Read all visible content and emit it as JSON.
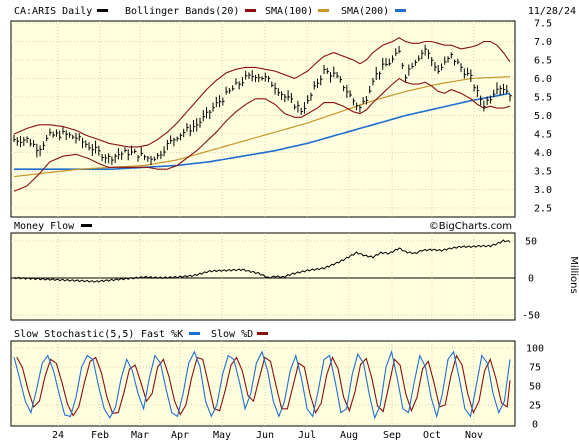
{
  "chart_data": [
    {
      "id": "price",
      "type": "line",
      "title": "CA:ARIS Daily",
      "date": "11/28/24",
      "watermark": "©BigCharts.com",
      "legend": [
        {
          "name": "Bollinger Bands(20)",
          "color": "#8b1010"
        },
        {
          "name": "SMA(100)",
          "color": "#c89628"
        },
        {
          "name": "SMA(200)",
          "color": "#1f6fcf"
        }
      ],
      "ylim": [
        2.5,
        7.5
      ],
      "y_ticks": [
        "2.5",
        "3.0",
        "3.5",
        "4.0",
        "4.5",
        "5.0",
        "5.5",
        "6.0",
        "6.5",
        "7.0",
        "7.5"
      ],
      "x_ticks": [
        "24",
        "Feb",
        "Mar",
        "Apr",
        "May",
        "Jun",
        "Jul",
        "Aug",
        "Sep",
        "Oct",
        "Nov"
      ],
      "price_waypoints": [
        [
          0,
          4.35
        ],
        [
          8,
          4.35
        ],
        [
          15,
          4.1
        ],
        [
          22,
          4.45
        ],
        [
          30,
          4.5
        ],
        [
          38,
          4.4
        ],
        [
          45,
          4.2
        ],
        [
          52,
          4.0
        ],
        [
          58,
          3.85
        ],
        [
          64,
          3.95
        ],
        [
          70,
          4.0
        ],
        [
          76,
          3.95
        ],
        [
          82,
          3.85
        ],
        [
          88,
          3.9
        ],
        [
          94,
          4.2
        ],
        [
          100,
          4.45
        ],
        [
          106,
          4.6
        ],
        [
          112,
          4.75
        ],
        [
          118,
          5.0
        ],
        [
          124,
          5.3
        ],
        [
          130,
          5.55
        ],
        [
          136,
          5.8
        ],
        [
          142,
          6.0
        ],
        [
          148,
          6.1
        ],
        [
          154,
          6.0
        ],
        [
          160,
          5.8
        ],
        [
          166,
          5.5
        ],
        [
          172,
          5.3
        ],
        [
          176,
          5.15
        ],
        [
          180,
          5.35
        ],
        [
          186,
          5.9
        ],
        [
          190,
          6.2
        ],
        [
          196,
          6.1
        ],
        [
          202,
          5.8
        ],
        [
          208,
          5.4
        ],
        [
          212,
          5.2
        ],
        [
          216,
          5.5
        ],
        [
          220,
          6.0
        ],
        [
          226,
          6.3
        ],
        [
          232,
          6.5
        ],
        [
          236,
          6.7
        ],
        [
          240,
          6.1
        ],
        [
          244,
          6.4
        ],
        [
          248,
          6.6
        ],
        [
          252,
          6.8
        ],
        [
          256,
          6.5
        ],
        [
          260,
          6.2
        ],
        [
          264,
          6.4
        ],
        [
          268,
          6.6
        ],
        [
          274,
          6.3
        ],
        [
          280,
          6.0
        ],
        [
          284,
          5.6
        ],
        [
          288,
          5.3
        ],
        [
          292,
          5.5
        ],
        [
          296,
          5.8
        ],
        [
          300,
          5.75
        ],
        [
          304,
          5.6
        ]
      ],
      "bb_upper_waypoints": [
        [
          0,
          4.5
        ],
        [
          8,
          4.65
        ],
        [
          15,
          4.75
        ],
        [
          22,
          4.75
        ],
        [
          30,
          4.7
        ],
        [
          38,
          4.6
        ],
        [
          45,
          4.45
        ],
        [
          52,
          4.35
        ],
        [
          58,
          4.25
        ],
        [
          64,
          4.2
        ],
        [
          70,
          4.15
        ],
        [
          76,
          4.15
        ],
        [
          82,
          4.2
        ],
        [
          88,
          4.35
        ],
        [
          94,
          4.55
        ],
        [
          100,
          4.8
        ],
        [
          106,
          5.1
        ],
        [
          112,
          5.4
        ],
        [
          118,
          5.7
        ],
        [
          124,
          5.95
        ],
        [
          130,
          6.15
        ],
        [
          136,
          6.25
        ],
        [
          142,
          6.3
        ],
        [
          148,
          6.3
        ],
        [
          154,
          6.25
        ],
        [
          160,
          6.2
        ],
        [
          166,
          6.1
        ],
        [
          172,
          6.0
        ],
        [
          176,
          6.1
        ],
        [
          180,
          6.2
        ],
        [
          186,
          6.45
        ],
        [
          190,
          6.6
        ],
        [
          196,
          6.7
        ],
        [
          202,
          6.6
        ],
        [
          208,
          6.5
        ],
        [
          212,
          6.4
        ],
        [
          216,
          6.5
        ],
        [
          220,
          6.7
        ],
        [
          226,
          6.9
        ],
        [
          232,
          7.0
        ],
        [
          236,
          7.1
        ],
        [
          240,
          7.0
        ],
        [
          244,
          6.95
        ],
        [
          248,
          6.95
        ],
        [
          252,
          7.0
        ],
        [
          256,
          7.0
        ],
        [
          260,
          6.95
        ],
        [
          264,
          6.9
        ],
        [
          268,
          6.9
        ],
        [
          274,
          6.8
        ],
        [
          280,
          6.85
        ],
        [
          284,
          6.9
        ],
        [
          288,
          7.0
        ],
        [
          292,
          7.0
        ],
        [
          296,
          6.9
        ],
        [
          300,
          6.7
        ],
        [
          304,
          6.45
        ]
      ],
      "bb_lower_waypoints": [
        [
          0,
          2.95
        ],
        [
          8,
          3.1
        ],
        [
          15,
          3.4
        ],
        [
          22,
          3.75
        ],
        [
          30,
          3.9
        ],
        [
          38,
          3.95
        ],
        [
          45,
          3.85
        ],
        [
          52,
          3.7
        ],
        [
          58,
          3.6
        ],
        [
          64,
          3.6
        ],
        [
          70,
          3.6
        ],
        [
          76,
          3.6
        ],
        [
          82,
          3.6
        ],
        [
          88,
          3.55
        ],
        [
          94,
          3.55
        ],
        [
          100,
          3.65
        ],
        [
          106,
          3.85
        ],
        [
          112,
          4.05
        ],
        [
          118,
          4.3
        ],
        [
          124,
          4.55
        ],
        [
          130,
          4.85
        ],
        [
          136,
          5.1
        ],
        [
          142,
          5.3
        ],
        [
          148,
          5.45
        ],
        [
          154,
          5.45
        ],
        [
          160,
          5.3
        ],
        [
          166,
          5.05
        ],
        [
          172,
          4.95
        ],
        [
          176,
          4.95
        ],
        [
          180,
          5.05
        ],
        [
          186,
          5.2
        ],
        [
          190,
          5.35
        ],
        [
          196,
          5.35
        ],
        [
          202,
          5.25
        ],
        [
          208,
          5.1
        ],
        [
          212,
          5.05
        ],
        [
          216,
          5.15
        ],
        [
          220,
          5.35
        ],
        [
          226,
          5.6
        ],
        [
          232,
          5.85
        ],
        [
          236,
          6.0
        ],
        [
          240,
          5.9
        ],
        [
          244,
          5.85
        ],
        [
          248,
          5.85
        ],
        [
          252,
          5.9
        ],
        [
          256,
          5.8
        ],
        [
          260,
          5.65
        ],
        [
          264,
          5.6
        ],
        [
          268,
          5.7
        ],
        [
          274,
          5.6
        ],
        [
          280,
          5.45
        ],
        [
          284,
          5.3
        ],
        [
          288,
          5.2
        ],
        [
          292,
          5.25
        ],
        [
          296,
          5.2
        ],
        [
          300,
          5.2
        ],
        [
          304,
          5.25
        ]
      ],
      "sma100_waypoints": [
        [
          0,
          3.35
        ],
        [
          20,
          3.45
        ],
        [
          40,
          3.55
        ],
        [
          60,
          3.6
        ],
        [
          80,
          3.65
        ],
        [
          100,
          3.8
        ],
        [
          120,
          4.05
        ],
        [
          140,
          4.3
        ],
        [
          160,
          4.55
        ],
        [
          180,
          4.8
        ],
        [
          200,
          5.1
        ],
        [
          220,
          5.4
        ],
        [
          240,
          5.65
        ],
        [
          260,
          5.85
        ],
        [
          280,
          6.0
        ],
        [
          304,
          6.05
        ]
      ],
      "sma200_waypoints": [
        [
          0,
          3.55
        ],
        [
          20,
          3.55
        ],
        [
          40,
          3.55
        ],
        [
          60,
          3.55
        ],
        [
          80,
          3.6
        ],
        [
          100,
          3.65
        ],
        [
          120,
          3.75
        ],
        [
          140,
          3.9
        ],
        [
          160,
          4.05
        ],
        [
          180,
          4.25
        ],
        [
          200,
          4.5
        ],
        [
          220,
          4.75
        ],
        [
          240,
          5.0
        ],
        [
          260,
          5.2
        ],
        [
          280,
          5.4
        ],
        [
          304,
          5.6
        ]
      ]
    },
    {
      "id": "moneyflow",
      "type": "line",
      "title": "Money Flow",
      "legend_color": "#000000",
      "ylim": [
        -50,
        50
      ],
      "y_ticks": [
        "50",
        "0",
        "-50"
      ],
      "y_unit": "Millions",
      "waypoints": [
        [
          0,
          0
        ],
        [
          10,
          -1
        ],
        [
          20,
          -2
        ],
        [
          30,
          -3
        ],
        [
          40,
          -4
        ],
        [
          50,
          -5
        ],
        [
          60,
          -3
        ],
        [
          70,
          -1
        ],
        [
          80,
          1
        ],
        [
          90,
          0
        ],
        [
          100,
          1
        ],
        [
          110,
          3
        ],
        [
          115,
          6
        ],
        [
          120,
          9
        ],
        [
          130,
          10
        ],
        [
          140,
          11
        ],
        [
          150,
          6
        ],
        [
          156,
          0
        ],
        [
          160,
          2
        ],
        [
          165,
          1
        ],
        [
          170,
          5
        ],
        [
          180,
          10
        ],
        [
          190,
          13
        ],
        [
          200,
          22
        ],
        [
          205,
          28
        ],
        [
          210,
          34
        ],
        [
          215,
          30
        ],
        [
          220,
          28
        ],
        [
          225,
          34
        ],
        [
          230,
          33
        ],
        [
          236,
          40
        ],
        [
          240,
          35
        ],
        [
          246,
          33
        ],
        [
          250,
          37
        ],
        [
          256,
          38
        ],
        [
          262,
          37
        ],
        [
          268,
          40
        ],
        [
          274,
          42
        ],
        [
          280,
          42
        ],
        [
          286,
          43
        ],
        [
          292,
          43
        ],
        [
          296,
          46
        ],
        [
          300,
          50
        ],
        [
          304,
          49
        ]
      ]
    },
    {
      "id": "stochastic",
      "type": "line",
      "title": "Slow Stochastic(5,5)",
      "series": [
        {
          "name": "Fast %K",
          "color": "#1f6fcf"
        },
        {
          "name": "Slow %D",
          "color": "#8b1010"
        }
      ],
      "ylim": [
        0,
        100
      ],
      "y_ticks": [
        "100",
        "75",
        "50",
        "25",
        "0"
      ],
      "k_values": [
        88,
        60,
        30,
        15,
        45,
        80,
        90,
        70,
        40,
        12,
        10,
        35,
        75,
        90,
        85,
        50,
        20,
        8,
        22,
        60,
        85,
        70,
        40,
        20,
        60,
        90,
        80,
        45,
        15,
        10,
        40,
        80,
        95,
        75,
        30,
        10,
        25,
        65,
        90,
        85,
        55,
        20,
        40,
        80,
        95,
        70,
        30,
        10,
        30,
        70,
        90,
        60,
        20,
        10,
        45,
        85,
        90,
        55,
        15,
        20,
        65,
        92,
        80,
        40,
        8,
        25,
        75,
        95,
        60,
        20,
        15,
        55,
        90,
        75,
        35,
        10,
        40,
        85,
        95,
        60,
        20,
        10,
        50,
        90,
        80,
        40,
        15,
        30,
        85
      ]
    }
  ]
}
